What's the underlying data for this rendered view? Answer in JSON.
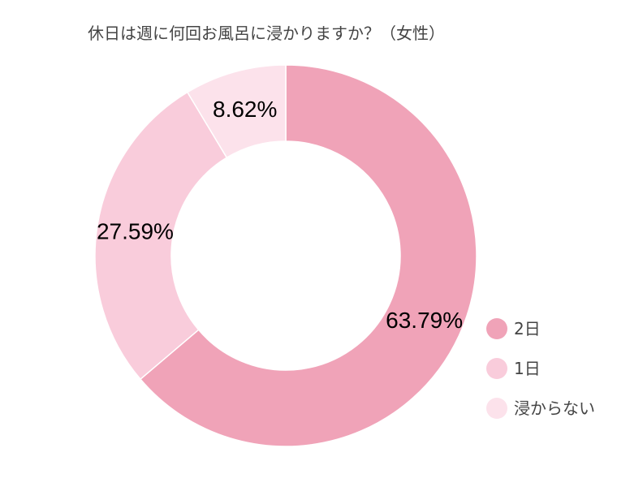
{
  "chart_data": {
    "type": "pie",
    "title": "休日は週に何回お風呂に浸かりますか？（女性）",
    "slices": [
      {
        "label": "2日",
        "value": 63.79,
        "value_label": "63.79%",
        "color": "#f0a3b8"
      },
      {
        "label": "1日",
        "value": 27.59,
        "value_label": "27.59%",
        "color": "#f9ccdb"
      },
      {
        "label": "浸からない",
        "value": 8.62,
        "value_label": "8.62%",
        "color": "#fce2eb"
      }
    ],
    "legend_placement": "bottom-right"
  }
}
